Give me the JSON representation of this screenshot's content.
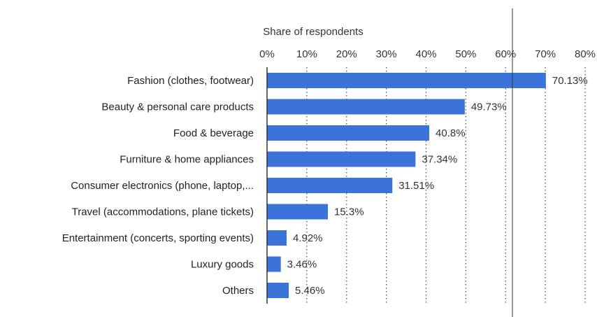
{
  "chart_data": {
    "type": "bar",
    "orientation": "horizontal",
    "xlabel": "Share of respondents",
    "xlim": [
      0,
      80
    ],
    "ticks": [
      "0%",
      "10%",
      "20%",
      "30%",
      "40%",
      "50%",
      "60%",
      "70%",
      "80%"
    ],
    "tick_values": [
      0,
      10,
      20,
      30,
      40,
      50,
      60,
      70,
      80
    ],
    "categories": [
      "Fashion (clothes, footwear)",
      "Beauty & personal care products",
      "Food & beverage",
      "Furniture & home appliances",
      "Consumer electronics (phone, laptop,...",
      "Travel (accommodations, plane tickets)",
      "Entertainment (concerts, sporting events)",
      "Luxury goods",
      "Others"
    ],
    "values": [
      70.13,
      49.73,
      40.8,
      37.34,
      31.51,
      15.3,
      4.92,
      3.46,
      5.46
    ],
    "value_labels": [
      "70.13%",
      "49.73%",
      "40.8%",
      "37.34%",
      "31.51%",
      "15.3%",
      "4.92%",
      "3.46%",
      "5.46%"
    ],
    "grid": "vertical-dotted",
    "bar_color": "#3b73d9"
  }
}
